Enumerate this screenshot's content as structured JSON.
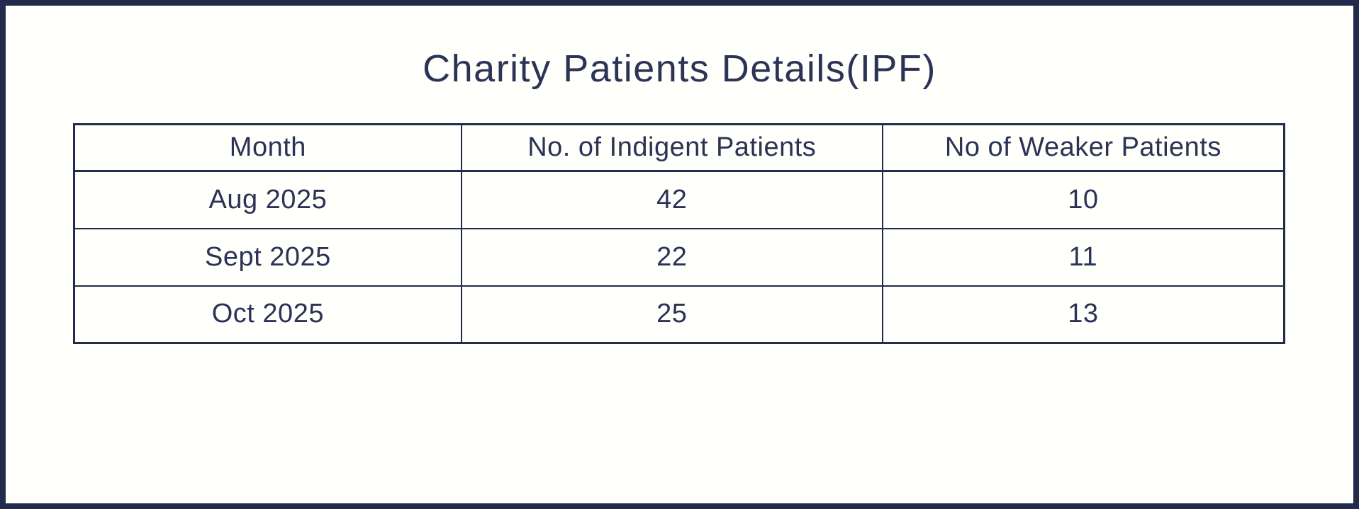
{
  "title": "Charity Patients Details(IPF)",
  "colors": {
    "frame_border": "#232b4d",
    "grid_border": "#232b4d",
    "text": "#2a3356",
    "background": "#fffffb"
  },
  "chart_data": {
    "type": "table",
    "title": "Charity Patients Details(IPF)",
    "columns": [
      "Month",
      "No. of Indigent Patients",
      "No of Weaker Patients"
    ],
    "rows": [
      [
        "Aug 2025",
        42,
        10
      ],
      [
        "Sept 2025",
        22,
        11
      ],
      [
        "Oct 2025",
        25,
        13
      ]
    ]
  }
}
